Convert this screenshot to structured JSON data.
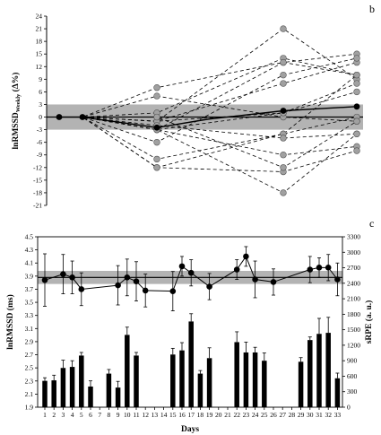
{
  "chart_data": [
    {
      "type": "line",
      "panel_label": "b",
      "ylabel_main": "lnRMSSD",
      "ylabel_sub": "Weekly",
      "ylabel_suffix": " (Δ%)",
      "ylim": [
        -21,
        24
      ],
      "yticks": [
        -21,
        -18,
        -15,
        -12,
        -9,
        -6,
        -3,
        0,
        3,
        6,
        9,
        12,
        15,
        18,
        21,
        24
      ],
      "x_timepoints": [
        0,
        1,
        2,
        3,
        4
      ],
      "band": [
        -3,
        3
      ],
      "series": [
        {
          "values": [
            0,
            0,
            7,
            13,
            10
          ]
        },
        {
          "values": [
            0,
            0,
            1,
            14,
            10
          ]
        },
        {
          "values": [
            0,
            0,
            -1,
            21,
            9
          ]
        },
        {
          "values": [
            0,
            0,
            -3,
            13,
            15
          ]
        },
        {
          "values": [
            0,
            0,
            -1,
            8,
            13
          ]
        },
        {
          "values": [
            0,
            0,
            -6,
            10,
            14
          ]
        },
        {
          "values": [
            0,
            0,
            -12,
            -4,
            10
          ]
        },
        {
          "values": [
            0,
            0,
            -1,
            1,
            8
          ]
        },
        {
          "values": [
            0,
            0,
            -10,
            -4,
            0
          ]
        },
        {
          "values": [
            0,
            0,
            5,
            0,
            -1
          ]
        },
        {
          "values": [
            0,
            0,
            -2,
            -5,
            -4
          ]
        },
        {
          "values": [
            0,
            0,
            -3,
            -9,
            -7
          ]
        },
        {
          "values": [
            0,
            0,
            -12,
            -13,
            -8
          ]
        },
        {
          "values": [
            0,
            0,
            -3,
            -18,
            -4
          ]
        },
        {
          "values": [
            0,
            0,
            0,
            -12,
            -1
          ]
        },
        {
          "values": [
            0,
            0,
            -3,
            1,
            6
          ]
        }
      ],
      "mean_series": {
        "values": [
          0,
          0,
          -2.5,
          -0.5,
          1.5,
          2.5
        ]
      },
      "mean_x": [
        0,
        1,
        2,
        3,
        4,
        5
      ]
    },
    {
      "type": "bar+line",
      "panel_label": "c",
      "xlabel": "Days",
      "ylabel_left": "lnRMSSD (ms)",
      "ylabel_right": "sRPE (a. u.)",
      "ylim_left": [
        1.9,
        4.5
      ],
      "ylim_right": [
        0,
        3300
      ],
      "yticks_left": [
        "1.9",
        "2.1",
        "2.3",
        "2.5",
        "2.7",
        "2.9",
        "3.1",
        "3.3",
        "3.5",
        "3.7",
        "3.9",
        "4.1",
        "4.3",
        "4.5"
      ],
      "yticks_right": [
        0,
        300,
        600,
        900,
        1200,
        1500,
        1800,
        2100,
        2400,
        2700,
        3000,
        3300
      ],
      "days": [
        1,
        2,
        3,
        4,
        5,
        6,
        7,
        8,
        9,
        10,
        11,
        12,
        13,
        14,
        15,
        16,
        17,
        18,
        19,
        20,
        21,
        22,
        23,
        24,
        25,
        26,
        27,
        28,
        29,
        30,
        31,
        32,
        33
      ],
      "band_left": [
        3.78,
        3.98
      ],
      "mean_left": 3.88,
      "lnrmssd": [
        {
          "day": 1,
          "value": 3.84,
          "err": 0.4
        },
        {
          "day": 3,
          "value": 3.93,
          "err": 0.3
        },
        {
          "day": 4,
          "value": 3.88,
          "err": 0.25
        },
        {
          "day": 5,
          "value": 3.7,
          "err": 0.25
        },
        {
          "day": 9,
          "value": 3.76,
          "err": 0.3
        },
        {
          "day": 10,
          "value": 3.88,
          "err": 0.28
        },
        {
          "day": 11,
          "value": 3.82,
          "err": 0.3
        },
        {
          "day": 12,
          "value": 3.68,
          "err": 0.25
        },
        {
          "day": 15,
          "value": 3.67,
          "err": 0.3
        },
        {
          "day": 16,
          "value": 4.05,
          "err": 0.15
        },
        {
          "day": 17,
          "value": 3.95,
          "err": 0.2
        },
        {
          "day": 19,
          "value": 3.74,
          "err": 0.2
        },
        {
          "day": 22,
          "value": 4.0,
          "err": 0.15
        },
        {
          "day": 23,
          "value": 4.2,
          "err": 0.15
        },
        {
          "day": 24,
          "value": 3.85,
          "err": 0.28
        },
        {
          "day": 26,
          "value": 3.81,
          "err": 0.2
        },
        {
          "day": 30,
          "value": 4.0,
          "err": 0.2
        },
        {
          "day": 31,
          "value": 4.03,
          "err": 0.15
        },
        {
          "day": 32,
          "value": 4.03,
          "err": 0.2
        },
        {
          "day": 33,
          "value": 3.85,
          "err": 0.25
        }
      ],
      "srpe": [
        {
          "day": 1,
          "value": 510,
          "err": 60
        },
        {
          "day": 2,
          "value": 520,
          "err": 100
        },
        {
          "day": 3,
          "value": 760,
          "err": 150
        },
        {
          "day": 4,
          "value": 780,
          "err": 120
        },
        {
          "day": 5,
          "value": 1000,
          "err": 60
        },
        {
          "day": 6,
          "value": 400,
          "err": 110
        },
        {
          "day": 8,
          "value": 650,
          "err": 80
        },
        {
          "day": 9,
          "value": 380,
          "err": 120
        },
        {
          "day": 10,
          "value": 1400,
          "err": 150
        },
        {
          "day": 11,
          "value": 1000,
          "err": 60
        },
        {
          "day": 15,
          "value": 1020,
          "err": 120
        },
        {
          "day": 16,
          "value": 1100,
          "err": 150
        },
        {
          "day": 17,
          "value": 1660,
          "err": 150
        },
        {
          "day": 18,
          "value": 650,
          "err": 60
        },
        {
          "day": 19,
          "value": 950,
          "err": 200
        },
        {
          "day": 22,
          "value": 1260,
          "err": 200
        },
        {
          "day": 23,
          "value": 1060,
          "err": 200
        },
        {
          "day": 24,
          "value": 1060,
          "err": 100
        },
        {
          "day": 25,
          "value": 900,
          "err": 150
        },
        {
          "day": 29,
          "value": 880,
          "err": 80
        },
        {
          "day": 30,
          "value": 1300,
          "err": 60
        },
        {
          "day": 31,
          "value": 1420,
          "err": 300
        },
        {
          "day": 33,
          "value": 560,
          "err": 100
        }
      ],
      "srpe_day32": {
        "day": 32,
        "value": 1440,
        "err": 300
      }
    }
  ]
}
